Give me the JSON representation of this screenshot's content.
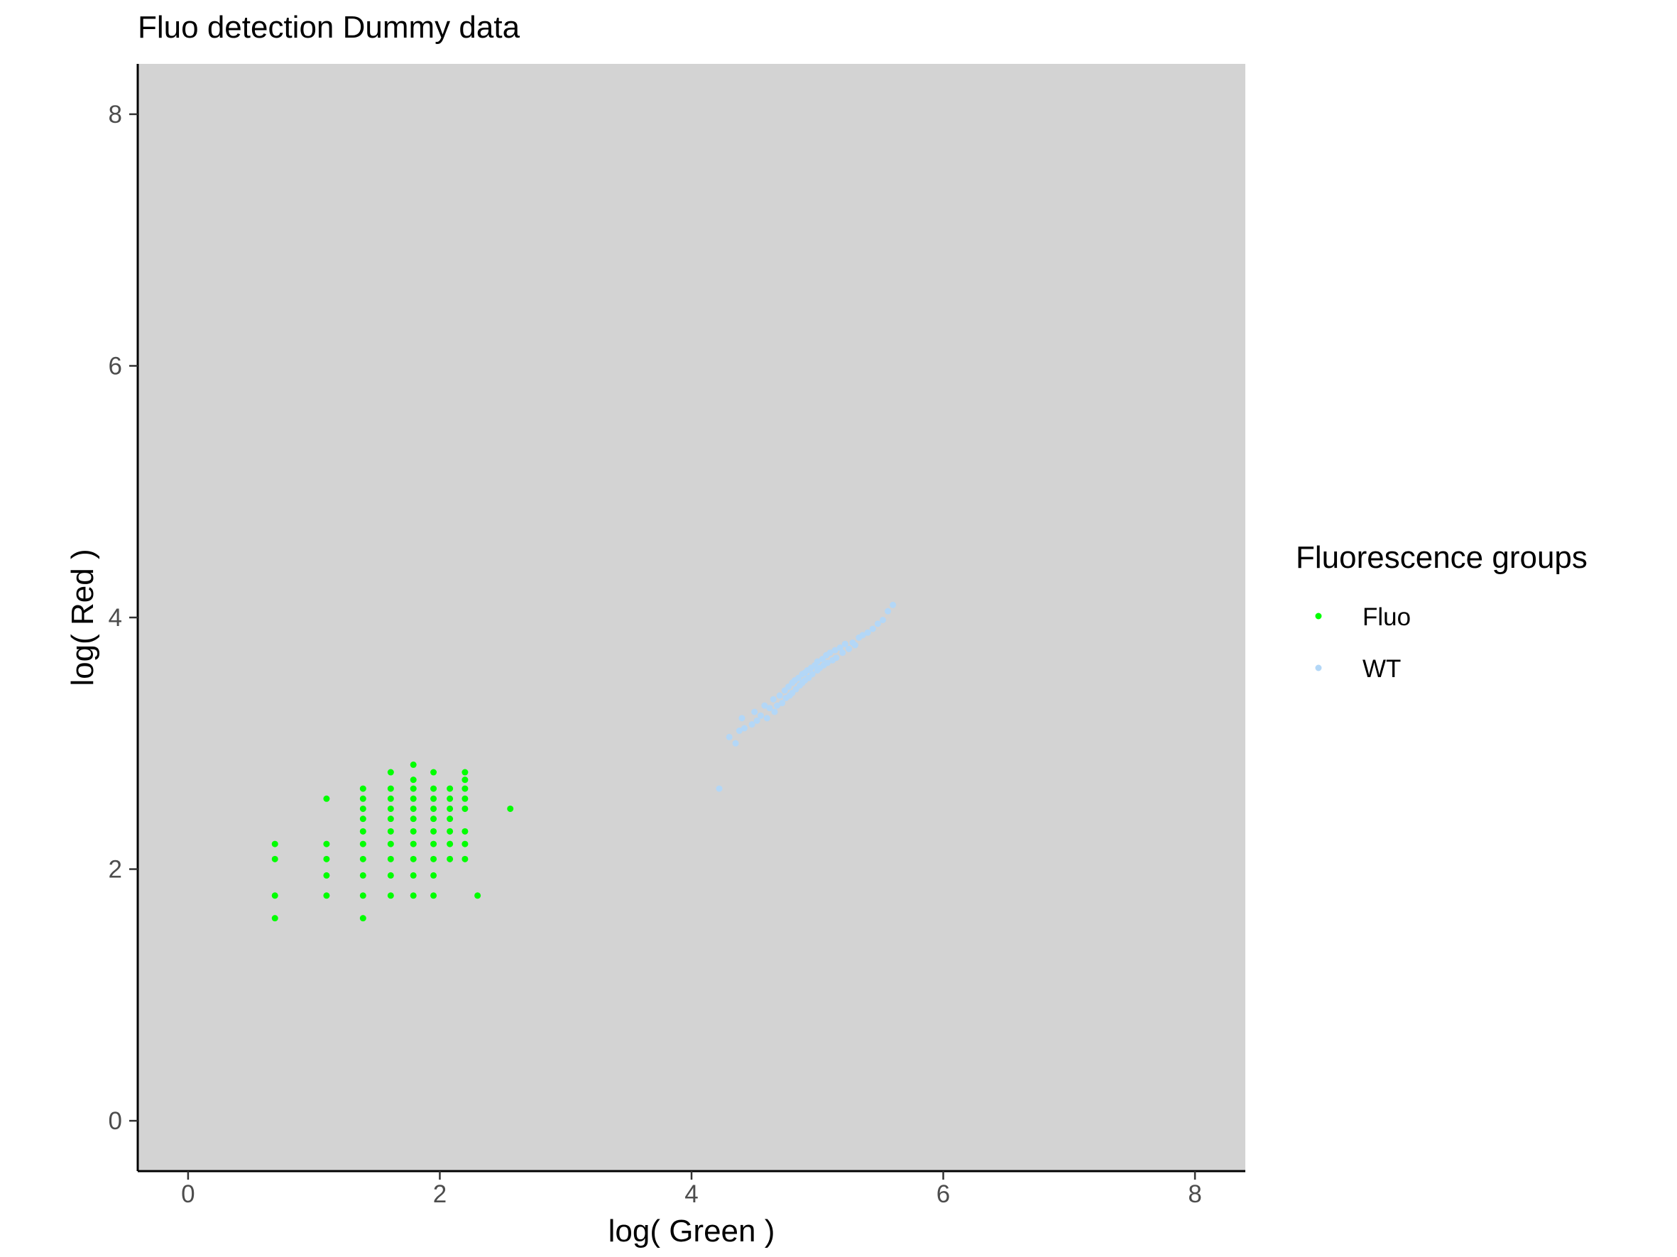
{
  "chart_data": {
    "type": "scatter",
    "title": "Fluo detection Dummy data",
    "xlabel": "log( Green )",
    "ylabel": "log( Red )",
    "xlim": [
      -0.4,
      8.4
    ],
    "ylim": [
      -0.4,
      8.4
    ],
    "xticks": [
      0,
      2,
      4,
      6,
      8
    ],
    "yticks": [
      0,
      2,
      4,
      6,
      8
    ],
    "grid": false,
    "panel_background": "#D3D3D3",
    "legend": {
      "title": "Fluorescence groups",
      "position": "right"
    },
    "series": [
      {
        "name": "Fluo",
        "color": "#00FF00",
        "points": [
          [
            0.69,
            1.61
          ],
          [
            0.69,
            1.79
          ],
          [
            0.69,
            2.08
          ],
          [
            0.69,
            2.2
          ],
          [
            1.1,
            1.79
          ],
          [
            1.1,
            1.95
          ],
          [
            1.1,
            2.08
          ],
          [
            1.1,
            2.2
          ],
          [
            1.1,
            2.56
          ],
          [
            1.39,
            1.61
          ],
          [
            1.39,
            1.79
          ],
          [
            1.39,
            1.95
          ],
          [
            1.39,
            2.08
          ],
          [
            1.39,
            2.2
          ],
          [
            1.39,
            2.3
          ],
          [
            1.39,
            2.4
          ],
          [
            1.39,
            2.48
          ],
          [
            1.39,
            2.56
          ],
          [
            1.39,
            2.64
          ],
          [
            1.61,
            1.79
          ],
          [
            1.61,
            1.95
          ],
          [
            1.61,
            2.08
          ],
          [
            1.61,
            2.2
          ],
          [
            1.61,
            2.3
          ],
          [
            1.61,
            2.4
          ],
          [
            1.61,
            2.48
          ],
          [
            1.61,
            2.56
          ],
          [
            1.61,
            2.64
          ],
          [
            1.61,
            2.77
          ],
          [
            1.79,
            1.79
          ],
          [
            1.79,
            1.95
          ],
          [
            1.79,
            2.08
          ],
          [
            1.79,
            2.2
          ],
          [
            1.79,
            2.3
          ],
          [
            1.79,
            2.4
          ],
          [
            1.79,
            2.48
          ],
          [
            1.79,
            2.56
          ],
          [
            1.79,
            2.64
          ],
          [
            1.79,
            2.71
          ],
          [
            1.79,
            2.83
          ],
          [
            1.95,
            1.79
          ],
          [
            1.95,
            1.95
          ],
          [
            1.95,
            2.08
          ],
          [
            1.95,
            2.2
          ],
          [
            1.95,
            2.3
          ],
          [
            1.95,
            2.4
          ],
          [
            1.95,
            2.48
          ],
          [
            1.95,
            2.56
          ],
          [
            1.95,
            2.64
          ],
          [
            1.95,
            2.77
          ],
          [
            2.08,
            2.08
          ],
          [
            2.08,
            2.2
          ],
          [
            2.08,
            2.3
          ],
          [
            2.08,
            2.4
          ],
          [
            2.08,
            2.48
          ],
          [
            2.08,
            2.56
          ],
          [
            2.08,
            2.64
          ],
          [
            2.2,
            2.08
          ],
          [
            2.2,
            2.2
          ],
          [
            2.2,
            2.3
          ],
          [
            2.2,
            2.48
          ],
          [
            2.2,
            2.56
          ],
          [
            2.2,
            2.64
          ],
          [
            2.2,
            2.71
          ],
          [
            2.2,
            2.77
          ],
          [
            2.3,
            1.79
          ],
          [
            2.56,
            2.48
          ]
        ]
      },
      {
        "name": "WT",
        "color": "#B3D7F7",
        "points": [
          [
            4.22,
            2.64
          ],
          [
            4.3,
            3.05
          ],
          [
            4.35,
            3.0
          ],
          [
            4.38,
            3.1
          ],
          [
            4.4,
            3.2
          ],
          [
            4.42,
            3.12
          ],
          [
            4.48,
            3.15
          ],
          [
            4.5,
            3.25
          ],
          [
            4.52,
            3.18
          ],
          [
            4.55,
            3.22
          ],
          [
            4.58,
            3.3
          ],
          [
            4.6,
            3.2
          ],
          [
            4.62,
            3.28
          ],
          [
            4.65,
            3.35
          ],
          [
            4.66,
            3.25
          ],
          [
            4.68,
            3.3
          ],
          [
            4.7,
            3.38
          ],
          [
            4.72,
            3.32
          ],
          [
            4.74,
            3.42
          ],
          [
            4.75,
            3.36
          ],
          [
            4.77,
            3.45
          ],
          [
            4.78,
            3.38
          ],
          [
            4.8,
            3.48
          ],
          [
            4.8,
            3.4
          ],
          [
            4.82,
            3.5
          ],
          [
            4.83,
            3.43
          ],
          [
            4.85,
            3.52
          ],
          [
            4.86,
            3.46
          ],
          [
            4.88,
            3.55
          ],
          [
            4.88,
            3.48
          ],
          [
            4.9,
            3.56
          ],
          [
            4.9,
            3.5
          ],
          [
            4.92,
            3.58
          ],
          [
            4.93,
            3.52
          ],
          [
            4.95,
            3.6
          ],
          [
            4.96,
            3.55
          ],
          [
            4.98,
            3.62
          ],
          [
            5.0,
            3.58
          ],
          [
            5.0,
            3.65
          ],
          [
            5.02,
            3.6
          ],
          [
            5.04,
            3.67
          ],
          [
            5.05,
            3.62
          ],
          [
            5.07,
            3.7
          ],
          [
            5.08,
            3.64
          ],
          [
            5.1,
            3.72
          ],
          [
            5.12,
            3.66
          ],
          [
            5.14,
            3.74
          ],
          [
            5.15,
            3.68
          ],
          [
            5.18,
            3.76
          ],
          [
            5.2,
            3.72
          ],
          [
            5.22,
            3.79
          ],
          [
            5.25,
            3.75
          ],
          [
            5.28,
            3.8
          ],
          [
            5.3,
            3.78
          ],
          [
            5.33,
            3.84
          ],
          [
            5.36,
            3.86
          ],
          [
            5.4,
            3.88
          ],
          [
            5.44,
            3.91
          ],
          [
            5.48,
            3.95
          ],
          [
            5.52,
            3.98
          ],
          [
            5.56,
            4.05
          ],
          [
            5.6,
            4.1
          ]
        ]
      }
    ]
  }
}
